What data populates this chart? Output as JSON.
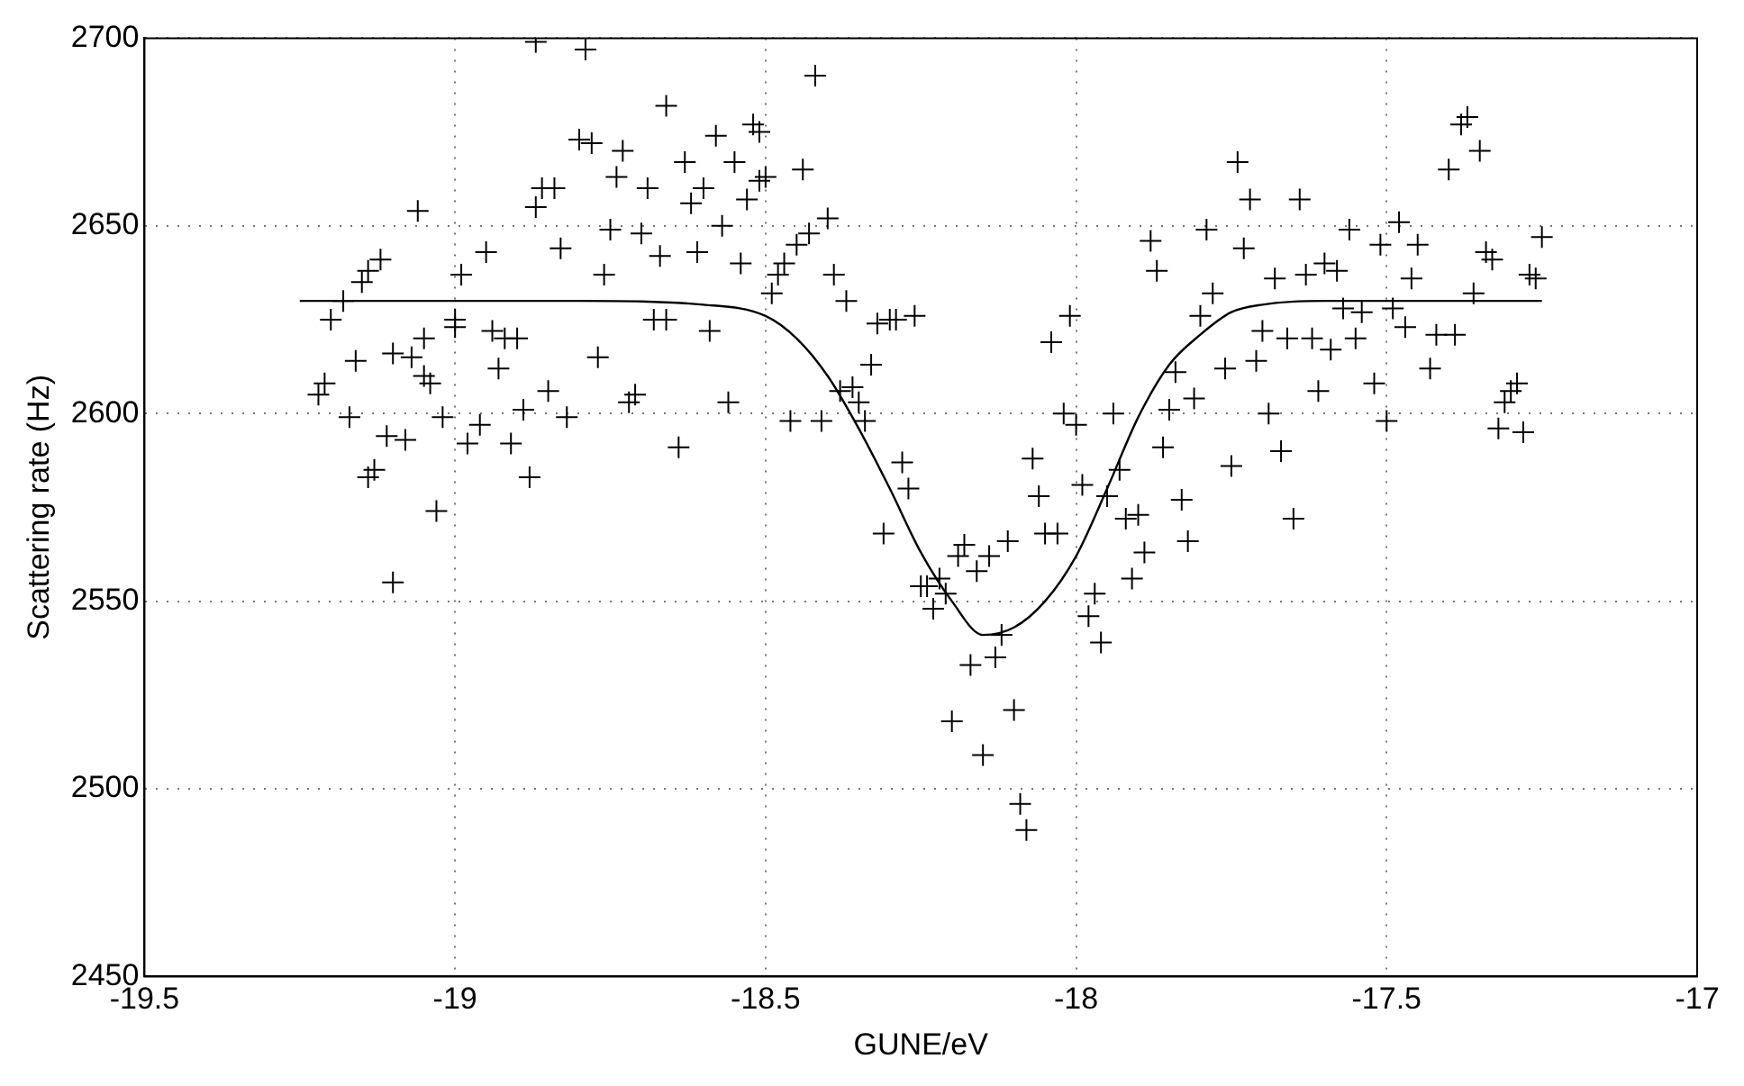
{
  "chart_data": {
    "type": "scatter",
    "xlabel": "GUNE/eV",
    "ylabel": "Scattering rate (Hz)",
    "xlim": [
      -19.5,
      -17
    ],
    "xticks": [
      -19.5,
      -19,
      -18.5,
      -18,
      -17.5,
      -17
    ],
    "ylim": [
      2450,
      2700
    ],
    "yticks": [
      2450,
      2500,
      2550,
      2600,
      2650,
      2700
    ],
    "grid": true,
    "marker": "cross",
    "legend": false,
    "series": [
      {
        "color": "#000000",
        "x": [
          -19.22,
          -19.21,
          -19.2,
          -19.18,
          -19.17,
          -19.16,
          -19.15,
          -19.14,
          -19.14,
          -19.13,
          -19.12,
          -19.11,
          -19.1,
          -19.1,
          -19.08,
          -19.07,
          -19.06,
          -19.05,
          -19.05,
          -19.04,
          -19.03,
          -19.02,
          -19.0,
          -19.0,
          -18.99,
          -18.98,
          -18.96,
          -18.95,
          -18.94,
          -18.93,
          -18.92,
          -18.91,
          -18.9,
          -18.89,
          -18.88,
          -18.87,
          -18.87,
          -18.86,
          -18.85,
          -18.84,
          -18.83,
          -18.82,
          -18.8,
          -18.79,
          -18.78,
          -18.77,
          -18.76,
          -18.75,
          -18.74,
          -18.73,
          -18.72,
          -18.71,
          -18.7,
          -18.69,
          -18.68,
          -18.67,
          -18.66,
          -18.66,
          -18.64,
          -18.63,
          -18.62,
          -18.61,
          -18.6,
          -18.59,
          -18.58,
          -18.57,
          -18.56,
          -18.55,
          -18.54,
          -18.53,
          -18.52,
          -18.51,
          -18.51,
          -18.5,
          -18.49,
          -18.48,
          -18.47,
          -18.46,
          -18.45,
          -18.44,
          -18.43,
          -18.42,
          -18.41,
          -18.4,
          -18.39,
          -18.38,
          -18.37,
          -18.36,
          -18.35,
          -18.34,
          -18.33,
          -18.32,
          -18.31,
          -18.3,
          -18.29,
          -18.28,
          -18.27,
          -18.26,
          -18.25,
          -18.24,
          -18.23,
          -18.22,
          -18.21,
          -18.2,
          -18.19,
          -18.18,
          -18.17,
          -18.16,
          -18.15,
          -18.14,
          -18.13,
          -18.12,
          -18.11,
          -18.1,
          -18.09,
          -18.08,
          -18.07,
          -18.06,
          -18.05,
          -18.04,
          -18.03,
          -18.02,
          -18.01,
          -18.0,
          -17.99,
          -17.98,
          -17.97,
          -17.96,
          -17.95,
          -17.94,
          -17.93,
          -17.92,
          -17.91,
          -17.9,
          -17.89,
          -17.88,
          -17.87,
          -17.86,
          -17.85,
          -17.84,
          -17.83,
          -17.82,
          -17.81,
          -17.8,
          -17.79,
          -17.78,
          -17.76,
          -17.75,
          -17.74,
          -17.73,
          -17.72,
          -17.71,
          -17.7,
          -17.69,
          -17.68,
          -17.67,
          -17.66,
          -17.65,
          -17.64,
          -17.63,
          -17.62,
          -17.61,
          -17.6,
          -17.59,
          -17.58,
          -17.57,
          -17.56,
          -17.55,
          -17.54,
          -17.52,
          -17.51,
          -17.5,
          -17.49,
          -17.48,
          -17.47,
          -17.46,
          -17.45,
          -17.43,
          -17.42,
          -17.4,
          -17.39,
          -17.38,
          -17.37,
          -17.36,
          -17.35,
          -17.34,
          -17.33,
          -17.32,
          -17.31,
          -17.3,
          -17.29,
          -17.28,
          -17.27,
          -17.26,
          -17.25
        ],
        "values": [
          2605,
          2608,
          2625,
          2630,
          2599,
          2614,
          2635,
          2638,
          2583,
          2585,
          2641,
          2594,
          2616,
          2555,
          2593,
          2615,
          2654,
          2620,
          2610,
          2608,
          2574,
          2599,
          2625,
          2623,
          2637,
          2592,
          2597,
          2643,
          2622,
          2612,
          2620,
          2592,
          2620,
          2601,
          2583,
          2655,
          2699,
          2660,
          2606,
          2660,
          2644,
          2599,
          2673,
          2697,
          2672,
          2615,
          2637,
          2649,
          2663,
          2670,
          2603,
          2605,
          2648,
          2660,
          2625,
          2642,
          2682,
          2625,
          2591,
          2667,
          2656,
          2643,
          2660,
          2622,
          2674,
          2650,
          2603,
          2667,
          2640,
          2657,
          2677,
          2662,
          2675,
          2663,
          2632,
          2637,
          2640,
          2598,
          2645,
          2665,
          2648,
          2690,
          2598,
          2652,
          2637,
          2606,
          2630,
          2607,
          2603,
          2598,
          2613,
          2624,
          2568,
          2625,
          2625,
          2587,
          2580,
          2626,
          2554,
          2554,
          2548,
          2556,
          2552,
          2518,
          2562,
          2565,
          2533,
          2558,
          2509,
          2562,
          2535,
          2541,
          2566,
          2521,
          2496,
          2489,
          2588,
          2578,
          2568,
          2619,
          2568,
          2600,
          2626,
          2597,
          2581,
          2546,
          2552,
          2539,
          2578,
          2600,
          2585,
          2572,
          2556,
          2573,
          2563,
          2646,
          2638,
          2591,
          2601,
          2611,
          2577,
          2566,
          2604,
          2626,
          2649,
          2632,
          2612,
          2586,
          2667,
          2644,
          2657,
          2614,
          2622,
          2600,
          2636,
          2590,
          2620,
          2572,
          2657,
          2637,
          2620,
          2606,
          2640,
          2617,
          2638,
          2628,
          2649,
          2620,
          2627,
          2608,
          2645,
          2598,
          2628,
          2651,
          2623,
          2636,
          2645,
          2612,
          2621,
          2665,
          2621,
          2677,
          2679,
          2632,
          2670,
          2643,
          2641,
          2596,
          2603,
          2606,
          2608,
          2595,
          2637,
          2636,
          2647
        ]
      },
      {
        "type": "line",
        "color": "#000000",
        "marker": "none",
        "line_style": "solid",
        "x": [
          -19.25,
          -18.8,
          -18.6,
          -18.5,
          -18.45,
          -18.4,
          -18.35,
          -18.3,
          -18.25,
          -18.2,
          -18.15,
          -18.1,
          -18.05,
          -18.0,
          -17.95,
          -17.9,
          -17.85,
          -17.8,
          -17.75,
          -17.7,
          -17.6,
          -17.25
        ],
        "values": [
          2630,
          2630,
          2629,
          2626,
          2620,
          2610,
          2596,
          2580,
          2563,
          2550,
          2541,
          2543,
          2550,
          2562,
          2580,
          2599,
          2613,
          2621,
          2627,
          2629,
          2630,
          2630
        ]
      }
    ]
  }
}
